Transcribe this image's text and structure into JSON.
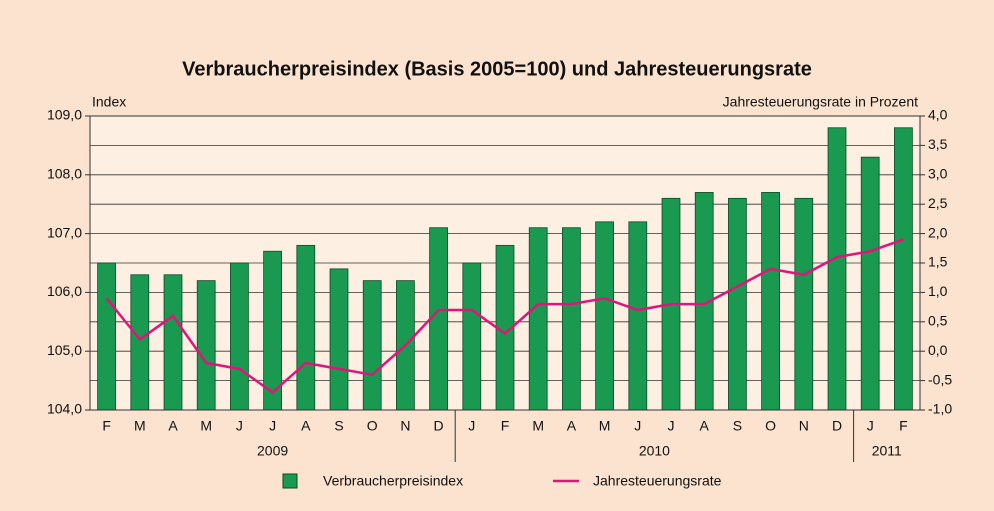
{
  "chart_data": {
    "type": "bar",
    "title": "Verbraucherpreisindex (Basis 2005=100) und Jahresteuerungsrate",
    "y_label": "Index",
    "y2_label": "Jahresteuerungsrate in Prozent",
    "categories": [
      "F",
      "M",
      "A",
      "M",
      "J",
      "J",
      "A",
      "S",
      "O",
      "N",
      "D",
      "J",
      "F",
      "M",
      "A",
      "M",
      "J",
      "J",
      "A",
      "S",
      "O",
      "N",
      "D",
      "J",
      "F"
    ],
    "x_groups": [
      {
        "label": "2009",
        "count": 11
      },
      {
        "label": "2010",
        "count": 12
      },
      {
        "label": "2011",
        "count": 2
      }
    ],
    "series": [
      {
        "name": "Verbraucherpreisindex",
        "type": "bar",
        "color": "#1a9a50",
        "values": [
          106.5,
          106.3,
          106.3,
          106.2,
          106.5,
          106.7,
          106.8,
          106.4,
          106.2,
          106.2,
          107.1,
          106.5,
          106.8,
          107.1,
          107.1,
          107.2,
          107.2,
          107.6,
          107.7,
          107.6,
          107.7,
          107.6,
          108.8,
          108.3,
          108.8
        ]
      },
      {
        "name": "Jahresteuerungsrate",
        "type": "line",
        "axis": "y2",
        "color": "#e0147a",
        "values": [
          0.9,
          0.2,
          0.6,
          -0.2,
          -0.3,
          -0.7,
          -0.2,
          -0.3,
          -0.4,
          0.1,
          0.7,
          0.7,
          0.3,
          0.8,
          0.8,
          0.9,
          0.7,
          0.8,
          0.8,
          1.1,
          1.4,
          1.3,
          1.6,
          1.7,
          1.9
        ]
      }
    ],
    "ylim": [
      104,
      109
    ],
    "yticks": [
      {
        "value": 104,
        "label": "104,0"
      },
      {
        "value": 105,
        "label": "105,0"
      },
      {
        "value": 106,
        "label": "106,0"
      },
      {
        "value": 107,
        "label": "107,0"
      },
      {
        "value": 108,
        "label": "108,0"
      },
      {
        "value": 109,
        "label": "109,0"
      }
    ],
    "y2lim": [
      -1,
      4
    ],
    "y2ticks": [
      {
        "value": -1,
        "label": "-1,0"
      },
      {
        "value": -0.5,
        "label": "-0,5"
      },
      {
        "value": 0,
        "label": "0,0"
      },
      {
        "value": 0.5,
        "label": "0,5"
      },
      {
        "value": 1,
        "label": "1,0"
      },
      {
        "value": 1.5,
        "label": "1,5"
      },
      {
        "value": 2,
        "label": "2,0"
      },
      {
        "value": 2.5,
        "label": "2,5"
      },
      {
        "value": 3,
        "label": "3,0"
      },
      {
        "value": 3.5,
        "label": "3,5"
      },
      {
        "value": 4,
        "label": "4,0"
      }
    ],
    "grid": true,
    "legend": "bottom"
  }
}
